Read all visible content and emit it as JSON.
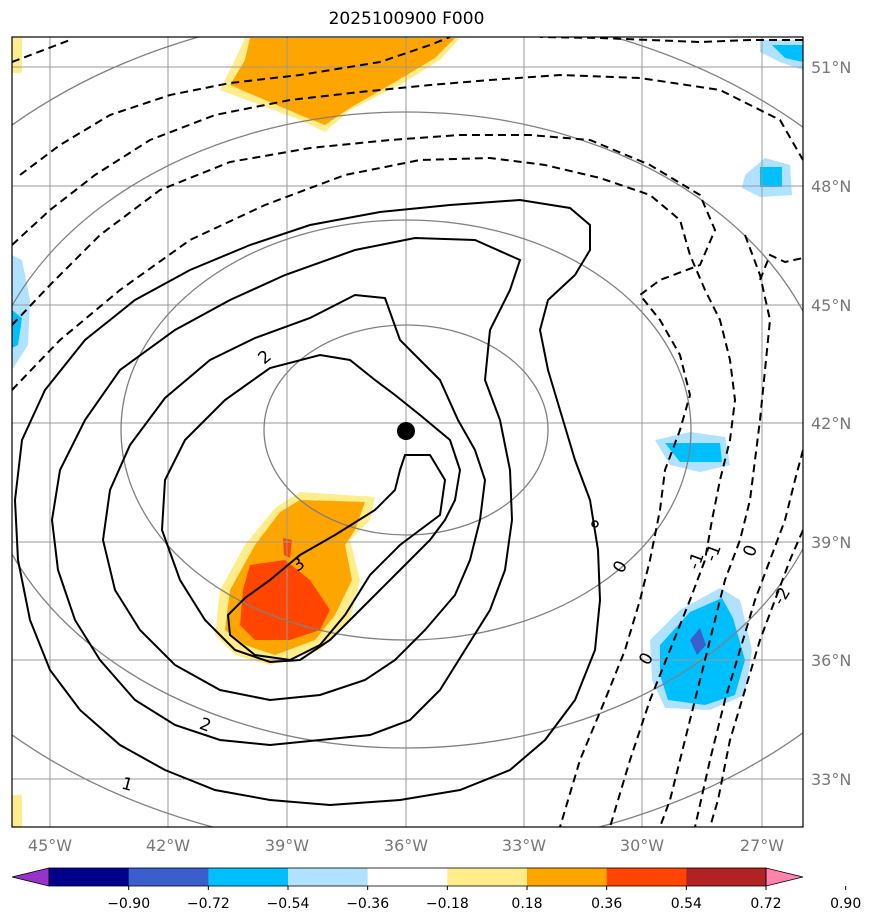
{
  "title": "2025100900 F000",
  "lat_labels": [
    "51°N",
    "48°N",
    "45°N",
    "42°N",
    "39°N",
    "36°N",
    "33°N"
  ],
  "lon_labels": [
    "45°W",
    "42°W",
    "39°W",
    "36°W",
    "33°W",
    "30°W",
    "27°W"
  ],
  "colorbar": {
    "colors": [
      "#9932CC",
      "#00008B",
      "#3A5FCD",
      "#00BFFF",
      "#B0E2FF",
      "#FFFFFF",
      "#FFEC8B",
      "#FFA500",
      "#FF4500",
      "#B22222",
      "#FF82AB"
    ],
    "tick_labels": [
      "−0.90",
      "−0.72",
      "−0.54",
      "−0.36",
      "−0.18",
      "0.18",
      "0.36",
      "0.54",
      "0.72",
      "0.90"
    ]
  },
  "contour_labels": {
    "c2a": "2",
    "c3": "3",
    "c2b": "2",
    "c1": "1",
    "z1": "0",
    "z2": "0",
    "z3": "0",
    "m1a": "-1",
    "m1b": "-1",
    "m2": "-2"
  },
  "map": {
    "center_marker": "storm-center",
    "shading_colors": {
      "pos_light": "#FFEC8B",
      "pos_mid": "#FFA500",
      "pos_high": "#FF4500",
      "neg_light": "#B0E2FF",
      "neg_mid": "#00BFFF",
      "neg_high": "#3A5FCD"
    }
  }
}
